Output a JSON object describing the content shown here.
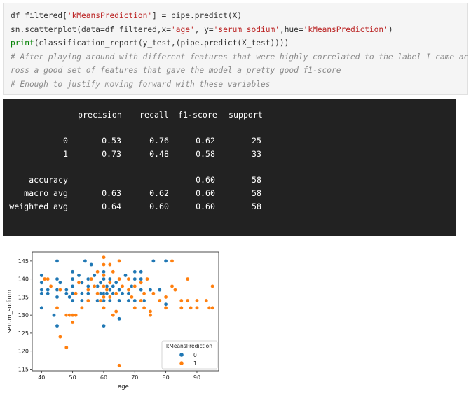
{
  "code": {
    "line1": {
      "a": "df_filtered[",
      "s1": "'kMeansPrediction'",
      "b": "] = pipe.predict(X)"
    },
    "line2": {
      "a": "sn.scatterplot(data=df_filtered,x=",
      "s1": "'age'",
      "b": ", y=",
      "s2": "'serum_sodium'",
      "c": ",hue=",
      "s3": "'kMeansPrediction'",
      "d": ")"
    },
    "line3": {
      "fn": "print",
      "rest": "(classification_report(y_test,(pipe.predict(X_test))))"
    },
    "comment1a": "# After playing around with different features that were highly correlated to the label I came ac",
    "comment1b": "ross a good set of features that gave the model a pretty good f1-score",
    "comment2": "# Enough to justify moving forward with these variables"
  },
  "report": {
    "headers": [
      "precision",
      "recall",
      "f1-score",
      "support"
    ],
    "rows": [
      {
        "label": "0",
        "precision": "0.53",
        "recall": "0.76",
        "f1": "0.62",
        "support": "25"
      },
      {
        "label": "1",
        "precision": "0.73",
        "recall": "0.48",
        "f1": "0.58",
        "support": "33"
      },
      {
        "label": "accuracy",
        "precision": "",
        "recall": "",
        "f1": "0.60",
        "support": "58"
      },
      {
        "label": "macro avg",
        "precision": "0.63",
        "recall": "0.62",
        "f1": "0.60",
        "support": "58"
      },
      {
        "label": "weighted avg",
        "precision": "0.64",
        "recall": "0.60",
        "f1": "0.60",
        "support": "58"
      }
    ]
  },
  "chart_data": {
    "type": "scatter",
    "title": "",
    "xlabel": "age",
    "ylabel": "serum_sodium",
    "xlim": [
      37,
      97
    ],
    "ylim": [
      114.5,
      147.5
    ],
    "xticks": [
      "40",
      "50",
      "60",
      "70",
      "80",
      "90"
    ],
    "yticks": [
      "115",
      "120",
      "125",
      "130",
      "135",
      "140",
      "145"
    ],
    "legend": {
      "title": "kMeansPrediction",
      "placement": "lower-right",
      "entries": [
        "0",
        "1"
      ]
    },
    "colors": {
      "0": "#1f77b4",
      "1": "#ff7f0e"
    },
    "series": [
      {
        "name": "0",
        "points": [
          [
            40,
            141
          ],
          [
            40,
            139
          ],
          [
            40,
            137
          ],
          [
            40,
            136
          ],
          [
            40,
            132
          ],
          [
            41,
            140
          ],
          [
            42,
            137
          ],
          [
            42,
            136
          ],
          [
            44,
            130
          ],
          [
            45,
            145
          ],
          [
            45,
            140
          ],
          [
            45,
            137
          ],
          [
            45,
            135
          ],
          [
            45,
            127
          ],
          [
            46,
            139
          ],
          [
            48,
            137
          ],
          [
            48,
            136
          ],
          [
            49,
            135
          ],
          [
            50,
            142
          ],
          [
            50,
            140
          ],
          [
            50,
            138
          ],
          [
            50,
            136
          ],
          [
            50,
            134
          ],
          [
            50,
            130
          ],
          [
            52,
            141
          ],
          [
            53,
            139
          ],
          [
            53,
            136
          ],
          [
            53,
            134
          ],
          [
            54,
            145
          ],
          [
            55,
            140
          ],
          [
            55,
            138
          ],
          [
            55,
            136
          ],
          [
            55,
            134
          ],
          [
            56,
            144
          ],
          [
            57,
            141
          ],
          [
            58,
            136
          ],
          [
            58,
            138
          ],
          [
            58,
            134
          ],
          [
            59,
            139
          ],
          [
            59,
            136
          ],
          [
            60,
            142
          ],
          [
            60,
            140
          ],
          [
            60,
            138
          ],
          [
            60,
            136
          ],
          [
            60,
            134
          ],
          [
            60,
            132
          ],
          [
            60,
            127
          ],
          [
            61,
            138
          ],
          [
            61,
            136
          ],
          [
            62,
            140
          ],
          [
            62,
            137
          ],
          [
            62,
            134
          ],
          [
            63,
            138
          ],
          [
            63,
            136
          ],
          [
            64,
            139
          ],
          [
            65,
            137
          ],
          [
            65,
            134
          ],
          [
            65,
            129
          ],
          [
            66,
            136
          ],
          [
            67,
            141
          ],
          [
            68,
            136
          ],
          [
            68,
            134
          ],
          [
            69,
            138
          ],
          [
            70,
            142
          ],
          [
            70,
            140
          ],
          [
            70,
            134
          ],
          [
            72,
            142
          ],
          [
            72,
            140
          ],
          [
            72,
            137
          ],
          [
            73,
            134
          ],
          [
            75,
            137
          ],
          [
            76,
            145
          ],
          [
            78,
            137
          ],
          [
            80,
            145
          ],
          [
            80,
            133
          ]
        ]
      },
      {
        "name": "1",
        "points": [
          [
            41,
            140
          ],
          [
            42,
            140
          ],
          [
            43,
            138
          ],
          [
            45,
            132
          ],
          [
            46,
            137
          ],
          [
            46,
            124
          ],
          [
            48,
            121
          ],
          [
            48,
            130
          ],
          [
            49,
            130
          ],
          [
            50,
            130
          ],
          [
            50,
            128
          ],
          [
            51,
            130
          ],
          [
            51,
            136
          ],
          [
            52,
            139
          ],
          [
            53,
            132
          ],
          [
            55,
            134
          ],
          [
            55,
            137
          ],
          [
            56,
            140
          ],
          [
            57,
            138
          ],
          [
            58,
            142
          ],
          [
            58,
            136
          ],
          [
            59,
            134
          ],
          [
            60,
            146
          ],
          [
            60,
            144
          ],
          [
            60,
            141
          ],
          [
            60,
            138
          ],
          [
            60,
            135
          ],
          [
            60,
            132
          ],
          [
            61,
            137
          ],
          [
            62,
            144
          ],
          [
            62,
            139
          ],
          [
            62,
            135
          ],
          [
            63,
            130
          ],
          [
            63,
            142
          ],
          [
            64,
            136
          ],
          [
            64,
            131
          ],
          [
            65,
            145
          ],
          [
            65,
            140
          ],
          [
            65,
            116
          ],
          [
            66,
            138
          ],
          [
            68,
            140
          ],
          [
            68,
            137
          ],
          [
            69,
            135
          ],
          [
            70,
            132
          ],
          [
            70,
            138
          ],
          [
            72,
            139
          ],
          [
            72,
            134
          ],
          [
            73,
            136
          ],
          [
            73,
            132
          ],
          [
            74,
            140
          ],
          [
            75,
            131
          ],
          [
            75,
            130
          ],
          [
            76,
            136
          ],
          [
            78,
            134
          ],
          [
            80,
            135
          ],
          [
            80,
            132
          ],
          [
            82,
            145
          ],
          [
            82,
            138
          ],
          [
            83,
            137
          ],
          [
            85,
            134
          ],
          [
            85,
            132
          ],
          [
            87,
            134
          ],
          [
            87,
            140
          ],
          [
            88,
            132
          ],
          [
            90,
            134
          ],
          [
            90,
            132
          ],
          [
            93,
            134
          ],
          [
            94,
            132
          ],
          [
            95,
            138
          ],
          [
            95,
            132
          ]
        ]
      }
    ]
  }
}
